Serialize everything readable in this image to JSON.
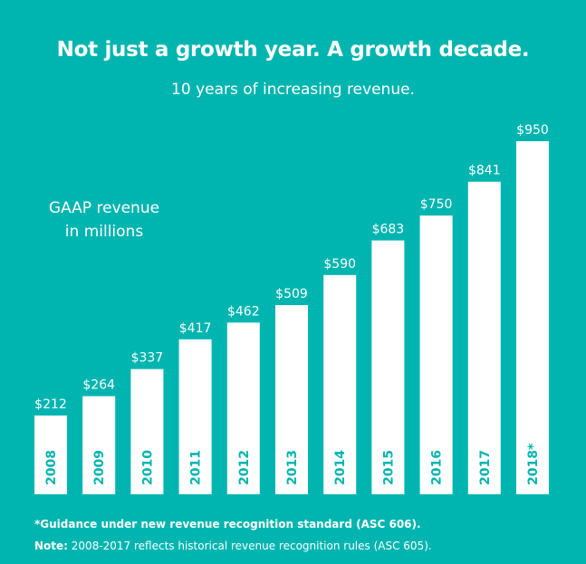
{
  "chart_data": {
    "type": "bar",
    "title": "Not just a growth year. A growth decade.",
    "subtitle": "10 years of increasing revenue.",
    "ylabel": "GAAP revenue in millions",
    "xlabel": "",
    "categories": [
      "2008",
      "2009",
      "2010",
      "2011",
      "2012",
      "2013",
      "2014",
      "2015",
      "2016",
      "2017",
      "2018*"
    ],
    "values": [
      212,
      264,
      337,
      417,
      462,
      509,
      590,
      683,
      750,
      841,
      950
    ],
    "value_labels": [
      "$212",
      "$264",
      "$337",
      "$417",
      "$462",
      "$509",
      "$590",
      "$683",
      "$750",
      "$841",
      "$950"
    ],
    "ylim": [
      0,
      950
    ],
    "grid": false,
    "legend": "none",
    "colors": {
      "background": "#00b5b0",
      "bar": "#ffffff",
      "year_label": "#00b5b0",
      "text": "#ffffff"
    }
  },
  "ylabel_lines": [
    "GAAP revenue",
    "in millions"
  ],
  "footnote": "*Guidance under new revenue recognition standard (ASC 606).",
  "note": {
    "label": "Note:",
    "text": " 2008-2017 reflects historical revenue recognition rules (ASC 605)."
  }
}
